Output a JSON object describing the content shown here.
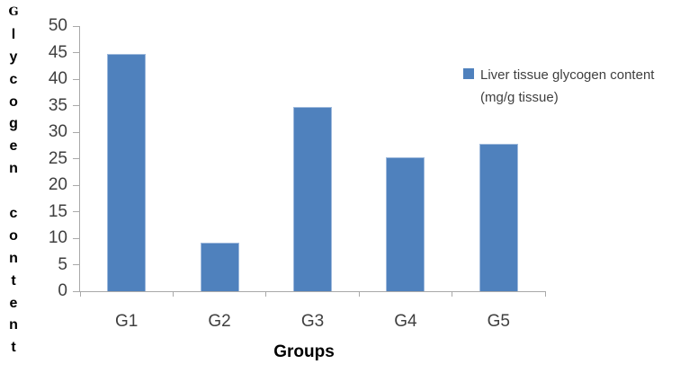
{
  "chart_data": {
    "type": "bar",
    "title": "",
    "categories": [
      "G1",
      "G2",
      "G3",
      "G4",
      "G5"
    ],
    "series": [
      {
        "name": "Liver tissue glycogen content (mg/g tissue)",
        "color": "#4F81BD",
        "values": [
          44.8,
          9.1,
          34.7,
          25.2,
          27.8
        ]
      }
    ],
    "xlabel": "Groups",
    "ylabel": "Glycogen content",
    "ylim": [
      0,
      50
    ],
    "yticks": [
      0,
      5,
      10,
      15,
      20,
      25,
      30,
      35,
      40,
      45,
      50
    ],
    "grid": false,
    "legend_position": "right"
  },
  "y_axis_title_letters": [
    "G",
    "l",
    "y",
    "c",
    "o",
    "g",
    "e",
    "n",
    "",
    "c",
    "o",
    "n",
    "t",
    "e",
    "n",
    "t"
  ],
  "legend": {
    "swatch_color": "#4F81BD",
    "lines": [
      "Liver tissue glycogen content",
      "(mg/g tissue)"
    ]
  },
  "colors": {
    "bar_fill": "#4F81BD",
    "bar_edge": "#9EB9DC",
    "axis_line": "#A9A9A9",
    "tick_label_text": "#3F3F3F",
    "title_text": "#000000"
  }
}
